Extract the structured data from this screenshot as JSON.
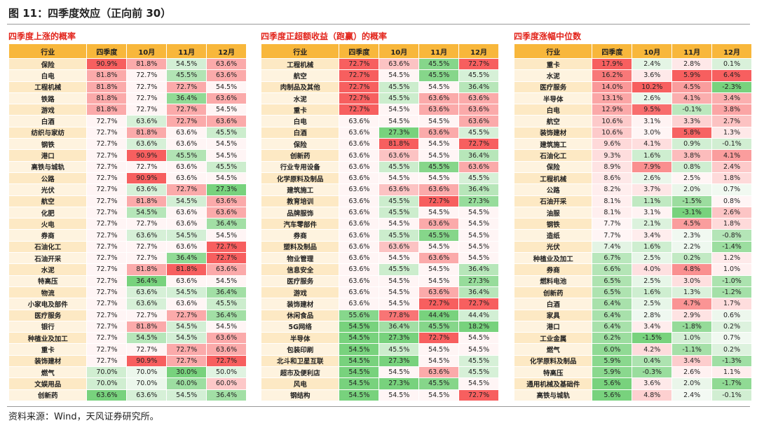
{
  "title": "图 11：四季度效应（正向前 30）",
  "tables": [
    {
      "title": "四季度上涨的概率",
      "header": [
        "行业",
        "四季度",
        "10月",
        "11月",
        "12月"
      ],
      "rows": [
        [
          "保险",
          "90.9%",
          "81.8%",
          "54.5%",
          "63.6%"
        ],
        [
          "白电",
          "81.8%",
          "72.7%",
          "45.5%",
          "63.6%"
        ],
        [
          "工程机械",
          "81.8%",
          "72.7%",
          "72.7%",
          "54.5%"
        ],
        [
          "铁路",
          "81.8%",
          "72.7%",
          "36.4%",
          "63.6%"
        ],
        [
          "游戏",
          "81.8%",
          "72.7%",
          "72.7%",
          "54.5%"
        ],
        [
          "白酒",
          "72.7%",
          "63.6%",
          "72.7%",
          "63.6%"
        ],
        [
          "纺织与家纺",
          "72.7%",
          "81.8%",
          "63.6%",
          "45.5%"
        ],
        [
          "钢铁",
          "72.7%",
          "63.6%",
          "63.6%",
          "54.5%"
        ],
        [
          "港口",
          "72.7%",
          "90.9%",
          "45.5%",
          "54.5%"
        ],
        [
          "高铁与城轨",
          "72.7%",
          "72.7%",
          "63.6%",
          "45.5%"
        ],
        [
          "公路",
          "72.7%",
          "90.9%",
          "63.6%",
          "54.5%"
        ],
        [
          "光伏",
          "72.7%",
          "63.6%",
          "72.7%",
          "27.3%"
        ],
        [
          "航空",
          "72.7%",
          "81.8%",
          "54.5%",
          "63.6%"
        ],
        [
          "化肥",
          "72.7%",
          "54.5%",
          "63.6%",
          "63.6%"
        ],
        [
          "火电",
          "72.7%",
          "72.7%",
          "63.6%",
          "36.4%"
        ],
        [
          "券商",
          "72.7%",
          "63.6%",
          "54.5%",
          "54.5%"
        ],
        [
          "石油化工",
          "72.7%",
          "72.7%",
          "63.6%",
          "72.7%"
        ],
        [
          "石油开采",
          "72.7%",
          "72.7%",
          "36.4%",
          "72.7%"
        ],
        [
          "水泥",
          "72.7%",
          "81.8%",
          "81.8%",
          "63.6%"
        ],
        [
          "特高压",
          "72.7%",
          "36.4%",
          "63.6%",
          "54.5%"
        ],
        [
          "物流",
          "72.7%",
          "63.6%",
          "54.5%",
          "36.4%"
        ],
        [
          "小家电及部件",
          "72.7%",
          "63.6%",
          "63.6%",
          "45.5%"
        ],
        [
          "医疗服务",
          "72.7%",
          "72.7%",
          "72.7%",
          "36.4%"
        ],
        [
          "银行",
          "72.7%",
          "81.8%",
          "54.5%",
          "54.5%"
        ],
        [
          "种植业及加工",
          "72.7%",
          "54.5%",
          "54.5%",
          "63.6%"
        ],
        [
          "重卡",
          "72.7%",
          "72.7%",
          "72.7%",
          "63.6%"
        ],
        [
          "装饰建材",
          "72.7%",
          "90.9%",
          "72.7%",
          "72.7%"
        ],
        [
          "燃气",
          "70.0%",
          "70.0%",
          "30.0%",
          "50.0%"
        ],
        [
          "文娱用品",
          "70.0%",
          "70.0%",
          "40.0%",
          "60.0%"
        ],
        [
          "创新药",
          "63.6%",
          "63.6%",
          "54.5%",
          "36.4%"
        ]
      ]
    },
    {
      "title": "四季度正超额收益（跑赢）的概率",
      "header": [
        "行业",
        "四季度",
        "10月",
        "11月",
        "12月"
      ],
      "rows": [
        [
          "工程机械",
          "72.7%",
          "63.6%",
          "45.5%",
          "72.7%"
        ],
        [
          "航空",
          "72.7%",
          "54.5%",
          "45.5%",
          "45.5%"
        ],
        [
          "肉制品及其他",
          "72.7%",
          "45.5%",
          "54.5%",
          "36.4%"
        ],
        [
          "水泥",
          "72.7%",
          "45.5%",
          "63.6%",
          "63.6%"
        ],
        [
          "重卡",
          "72.7%",
          "54.5%",
          "63.6%",
          "63.6%"
        ],
        [
          "白电",
          "63.6%",
          "54.5%",
          "54.5%",
          "63.6%"
        ],
        [
          "白酒",
          "63.6%",
          "27.3%",
          "63.6%",
          "45.5%"
        ],
        [
          "保险",
          "63.6%",
          "81.8%",
          "54.5%",
          "72.7%"
        ],
        [
          "创新药",
          "63.6%",
          "63.6%",
          "54.5%",
          "36.4%"
        ],
        [
          "行业专用设备",
          "63.6%",
          "45.5%",
          "45.5%",
          "63.6%"
        ],
        [
          "化学原料及制品",
          "63.6%",
          "54.5%",
          "54.5%",
          "45.5%"
        ],
        [
          "建筑施工",
          "63.6%",
          "63.6%",
          "63.6%",
          "36.4%"
        ],
        [
          "教育培训",
          "63.6%",
          "45.5%",
          "72.7%",
          "27.3%"
        ],
        [
          "品牌服饰",
          "63.6%",
          "45.5%",
          "54.5%",
          "54.5%"
        ],
        [
          "汽车零部件",
          "63.6%",
          "54.5%",
          "63.6%",
          "54.5%"
        ],
        [
          "券商",
          "63.6%",
          "45.5%",
          "45.5%",
          "54.5%"
        ],
        [
          "塑料及制品",
          "63.6%",
          "63.6%",
          "54.5%",
          "54.5%"
        ],
        [
          "物业管理",
          "63.6%",
          "54.5%",
          "63.6%",
          "54.5%"
        ],
        [
          "信息安全",
          "63.6%",
          "45.5%",
          "54.5%",
          "36.4%"
        ],
        [
          "医疗服务",
          "63.6%",
          "54.5%",
          "54.5%",
          "27.3%"
        ],
        [
          "游戏",
          "63.6%",
          "54.5%",
          "63.6%",
          "36.4%"
        ],
        [
          "装饰建材",
          "63.6%",
          "54.5%",
          "72.7%",
          "72.7%"
        ],
        [
          "休闲食品",
          "55.6%",
          "77.8%",
          "44.4%",
          "44.4%"
        ],
        [
          "5G网络",
          "54.5%",
          "36.4%",
          "45.5%",
          "18.2%"
        ],
        [
          "半导体",
          "54.5%",
          "27.3%",
          "72.7%",
          "54.5%"
        ],
        [
          "包装印刷",
          "54.5%",
          "45.5%",
          "54.5%",
          "54.5%"
        ],
        [
          "北斗和卫星互联",
          "54.5%",
          "27.3%",
          "54.5%",
          "45.5%"
        ],
        [
          "超市及便利店",
          "54.5%",
          "54.5%",
          "63.6%",
          "45.5%"
        ],
        [
          "风电",
          "54.5%",
          "27.3%",
          "45.5%",
          "54.5%"
        ],
        [
          "钢结构",
          "54.5%",
          "54.5%",
          "54.5%",
          "72.7%"
        ]
      ]
    },
    {
      "title": "四季度涨幅中位数",
      "header": [
        "行业",
        "四季度",
        "10月",
        "11月",
        "12月"
      ],
      "rows": [
        [
          "重卡",
          "17.9%",
          "2.4%",
          "2.8%",
          "0.1%"
        ],
        [
          "水泥",
          "16.2%",
          "3.6%",
          "5.9%",
          "6.4%"
        ],
        [
          "医疗服务",
          "14.0%",
          "10.2%",
          "4.5%",
          "-2.3%"
        ],
        [
          "半导体",
          "13.1%",
          "2.6%",
          "4.1%",
          "3.4%"
        ],
        [
          "白电",
          "12.9%",
          "9.5%",
          "-0.1%",
          "3.8%"
        ],
        [
          "航空",
          "10.6%",
          "3.1%",
          "3.3%",
          "2.7%"
        ],
        [
          "装饰建材",
          "10.6%",
          "3.0%",
          "5.8%",
          "1.3%"
        ],
        [
          "建筑施工",
          "9.6%",
          "4.1%",
          "0.9%",
          "-0.1%"
        ],
        [
          "石油化工",
          "9.3%",
          "1.6%",
          "3.8%",
          "4.1%"
        ],
        [
          "保险",
          "8.9%",
          "7.9%",
          "0.8%",
          "2.4%"
        ],
        [
          "工程机械",
          "8.6%",
          "2.6%",
          "2.5%",
          "1.8%"
        ],
        [
          "公路",
          "8.2%",
          "3.7%",
          "2.0%",
          "0.7%"
        ],
        [
          "石油开采",
          "8.1%",
          "1.1%",
          "-1.5%",
          "0.8%"
        ],
        [
          "油服",
          "8.1%",
          "3.1%",
          "-3.1%",
          "2.6%"
        ],
        [
          "钢铁",
          "7.7%",
          "2.1%",
          "4.5%",
          "1.8%"
        ],
        [
          "造纸",
          "7.7%",
          "3.4%",
          "2.3%",
          "-0.8%"
        ],
        [
          "光伏",
          "7.4%",
          "1.6%",
          "2.2%",
          "-1.4%"
        ],
        [
          "种植业及加工",
          "6.7%",
          "2.5%",
          "0.2%",
          "1.2%"
        ],
        [
          "券商",
          "6.6%",
          "4.0%",
          "4.8%",
          "1.0%"
        ],
        [
          "燃料电池",
          "6.5%",
          "2.5%",
          "3.0%",
          "-1.0%"
        ],
        [
          "创新药",
          "6.5%",
          "1.6%",
          "1.3%",
          "-1.2%"
        ],
        [
          "白酒",
          "6.4%",
          "2.5%",
          "4.7%",
          "1.7%"
        ],
        [
          "家具",
          "6.4%",
          "2.8%",
          "2.9%",
          "0.6%"
        ],
        [
          "港口",
          "6.4%",
          "3.4%",
          "-1.8%",
          "0.2%"
        ],
        [
          "工业金属",
          "6.2%",
          "-1.5%",
          "1.0%",
          "0.7%"
        ],
        [
          "燃气",
          "6.0%",
          "4.2%",
          "-1.1%",
          "0.2%"
        ],
        [
          "化学原料及制品",
          "5.9%",
          "0.4%",
          "3.4%",
          "-1.3%"
        ],
        [
          "特高压",
          "5.9%",
          "-0.3%",
          "2.6%",
          "1.1%"
        ],
        [
          "通用机械及基础件",
          "5.6%",
          "3.6%",
          "2.0%",
          "-1.7%"
        ],
        [
          "高铁与城轨",
          "5.6%",
          "4.8%",
          "2.4%",
          "-0.1%"
        ]
      ]
    }
  ],
  "source": "资料来源：Wind，天风证券研究所。"
}
